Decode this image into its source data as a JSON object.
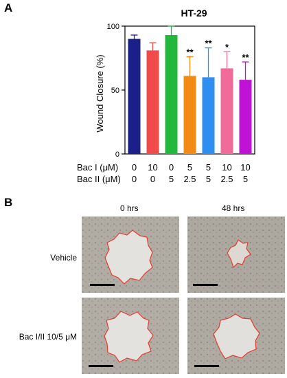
{
  "panelA": {
    "letter": "A",
    "chart_data": {
      "type": "bar",
      "title": "HT-29",
      "ylabel": "Wound Closure (%)",
      "xlabel": "",
      "ylim": [
        0,
        100
      ],
      "yticks": [
        "0",
        "50",
        "100"
      ],
      "grid": false,
      "categories": [
        "0/0",
        "10/0",
        "0/5",
        "5/2.5",
        "5/5",
        "10/2.5",
        "10/5"
      ],
      "values": [
        90,
        81,
        93,
        61,
        60,
        67,
        58
      ],
      "errors": [
        3,
        6,
        7,
        15,
        23,
        13,
        14
      ],
      "significance": [
        "",
        "",
        "",
        "**",
        "**",
        "*",
        "**"
      ],
      "colors": [
        "#1b1f8a",
        "#f04a4a",
        "#22b83b",
        "#f28a13",
        "#2f8ff0",
        "#f06a9a",
        "#bf12d6"
      ]
    },
    "table": {
      "row1_label": "Bac I  (μM)",
      "row2_label": "Bac II (μM)",
      "row1_values": [
        "0",
        "10",
        "0",
        "5",
        "5",
        "10",
        "10"
      ],
      "row2_values": [
        "0",
        "0",
        "5",
        "2.5",
        "5",
        "2.5",
        "5"
      ]
    }
  },
  "panelB": {
    "letter": "B",
    "time_labels": [
      "0 hrs",
      "48 hrs"
    ],
    "conditions": [
      "Vehicle",
      "Bac I/II 10/5 μM"
    ]
  }
}
